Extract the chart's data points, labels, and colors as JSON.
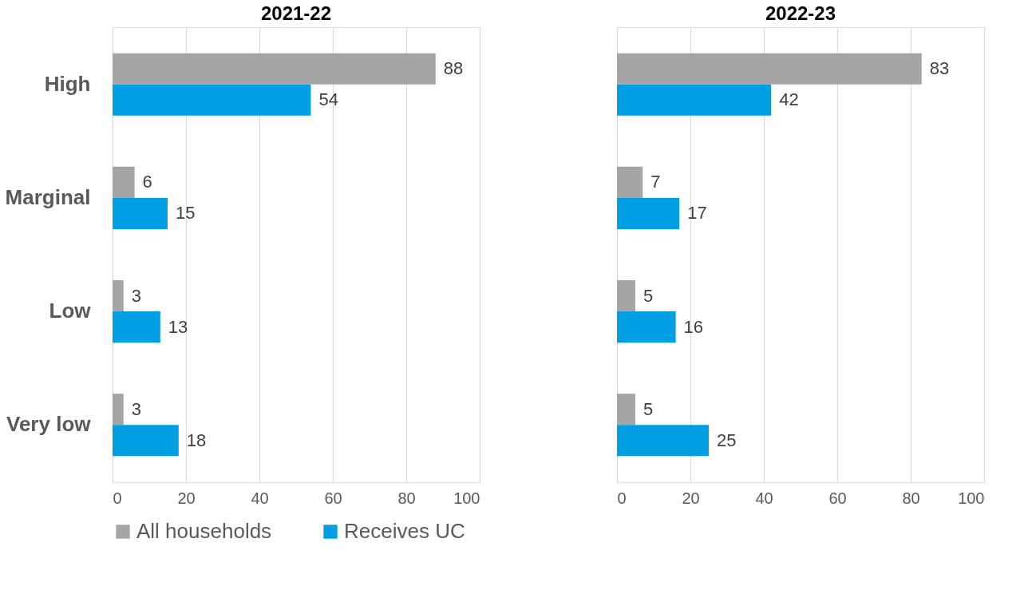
{
  "chart_data": [
    {
      "type": "bar",
      "orientation": "horizontal",
      "title": "2021-22",
      "categories": [
        "High",
        "Marginal",
        "Low",
        "Very low"
      ],
      "series": [
        {
          "name": "All households",
          "color": "#a5a5a5",
          "values": [
            88,
            6,
            3,
            3
          ]
        },
        {
          "name": "Receives UC",
          "color": "#009fe3",
          "values": [
            54,
            15,
            13,
            18
          ]
        }
      ],
      "xlim": [
        0,
        100
      ],
      "xticks": [
        0,
        20,
        40,
        60,
        80,
        100
      ],
      "grid": "x",
      "data_labels": true,
      "legend": "bottom"
    },
    {
      "type": "bar",
      "orientation": "horizontal",
      "title": "2022-23",
      "categories": [
        "High",
        "Marginal",
        "Low",
        "Very low"
      ],
      "series": [
        {
          "name": "All households",
          "color": "#a5a5a5",
          "values": [
            83,
            7,
            5,
            5
          ]
        },
        {
          "name": "Receives UC",
          "color": "#009fe3",
          "values": [
            42,
            17,
            16,
            25
          ]
        }
      ],
      "xlim": [
        0,
        100
      ],
      "xticks": [
        0,
        20,
        40,
        60,
        80,
        100
      ],
      "grid": "x",
      "data_labels": true,
      "legend": "bottom",
      "tick_labels": "x"
    }
  ]
}
